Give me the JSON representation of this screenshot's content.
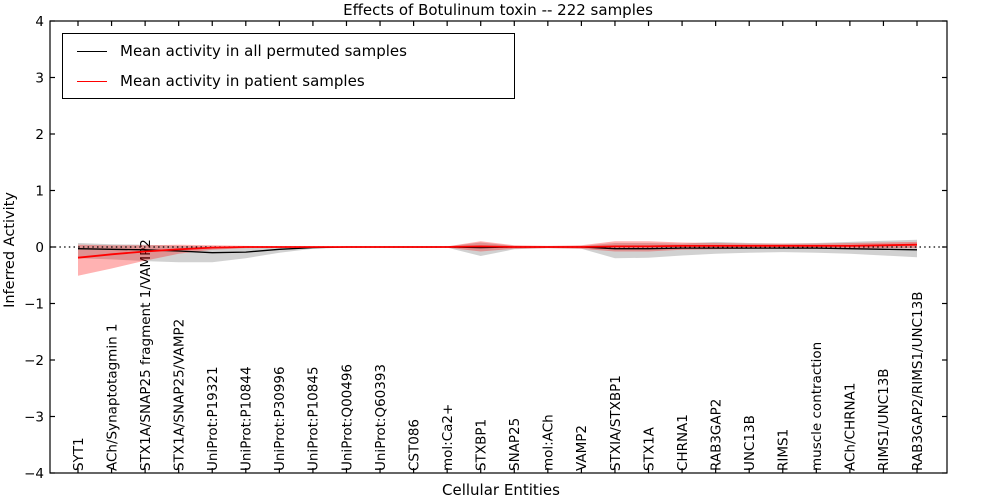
{
  "chart_data": {
    "type": "line",
    "title": "Effects of Botulinum toxin -- 222 samples",
    "xlabel": "Cellular Entities",
    "ylabel": "Inferred Activity",
    "ylim": [
      -4,
      4
    ],
    "yticks": [
      4,
      3,
      2,
      1,
      0,
      -1,
      -2,
      -3,
      -4
    ],
    "grid": false,
    "legend_position": "upper left",
    "zero_line": {
      "y": 0,
      "style": "dotted",
      "color": "#000000"
    },
    "categories": [
      "SYT1",
      "ACh/Synaptotagmin 1",
      "STX1A/SNAP25 fragment 1/VAMP2",
      "STX1A/SNAP25/VAMP2",
      "UniProt:P19321",
      "UniProt:P10844",
      "UniProt:P30996",
      "UniProt:P10845",
      "UniProt:Q00496",
      "UniProt:Q60393",
      "CST086",
      "mol:Ca2+",
      "STXBP1",
      "SNAP25",
      "mol:ACh",
      "VAMP2",
      "STXIA/STXBP1",
      "STX1A",
      "CHRNA1",
      "RAB3GAP2",
      "UNC13B",
      "RIMS1",
      "muscle contraction",
      "ACh/CHRNA1",
      "RIMS1/UNC13B",
      "RAB3GAP2/RIMS1/UNC13B"
    ],
    "series": [
      {
        "name": "Mean activity in all permuted samples",
        "color": "#000000",
        "band_color": "rgba(0,0,0,0.18)",
        "mean": [
          -0.03,
          -0.04,
          -0.05,
          -0.07,
          -0.1,
          -0.09,
          -0.04,
          -0.01,
          0,
          0,
          0,
          0,
          -0.01,
          0,
          0,
          0,
          -0.03,
          -0.03,
          -0.02,
          -0.02,
          -0.02,
          -0.02,
          -0.02,
          -0.03,
          -0.04,
          -0.05
        ],
        "band_high": [
          0.07,
          0.05,
          0.04,
          0.02,
          0.01,
          0.01,
          0.0,
          0.0,
          0.01,
          0.01,
          0.01,
          0.01,
          0.08,
          0.02,
          0.01,
          0.02,
          0.07,
          0.07,
          0.06,
          0.09,
          0.07,
          0.06,
          0.07,
          0.09,
          0.11,
          0.13
        ],
        "band_low": [
          -0.2,
          -0.22,
          -0.25,
          -0.27,
          -0.27,
          -0.2,
          -0.1,
          -0.03,
          -0.01,
          -0.01,
          -0.01,
          -0.01,
          -0.16,
          -0.04,
          -0.02,
          -0.03,
          -0.2,
          -0.19,
          -0.15,
          -0.12,
          -0.1,
          -0.09,
          -0.1,
          -0.12,
          -0.15,
          -0.18
        ]
      },
      {
        "name": "Mean activity in patient samples",
        "color": "#ff0000",
        "band_color": "rgba(255,0,0,0.30)",
        "mean": [
          -0.19,
          -0.13,
          -0.08,
          -0.04,
          -0.01,
          0,
          0,
          0,
          0,
          0,
          0,
          0,
          0.01,
          0,
          0,
          0,
          0.01,
          0.01,
          0.02,
          0.02,
          0.02,
          0.02,
          0.02,
          0.02,
          0.03,
          0.04
        ],
        "band_high": [
          0.04,
          0.03,
          0.03,
          0.04,
          0.03,
          0.02,
          0.01,
          0.01,
          0.01,
          0.01,
          0.01,
          0.01,
          0.1,
          0.03,
          0.02,
          0.03,
          0.1,
          0.1,
          0.08,
          0.07,
          0.06,
          0.06,
          0.06,
          0.07,
          0.08,
          0.09
        ],
        "band_low": [
          -0.51,
          -0.38,
          -0.24,
          -0.12,
          -0.05,
          -0.02,
          -0.01,
          -0.01,
          -0.01,
          -0.01,
          -0.01,
          -0.01,
          -0.08,
          -0.03,
          -0.02,
          -0.03,
          -0.08,
          -0.08,
          -0.05,
          -0.04,
          -0.03,
          -0.03,
          -0.03,
          -0.03,
          -0.02,
          -0.02
        ]
      }
    ]
  }
}
